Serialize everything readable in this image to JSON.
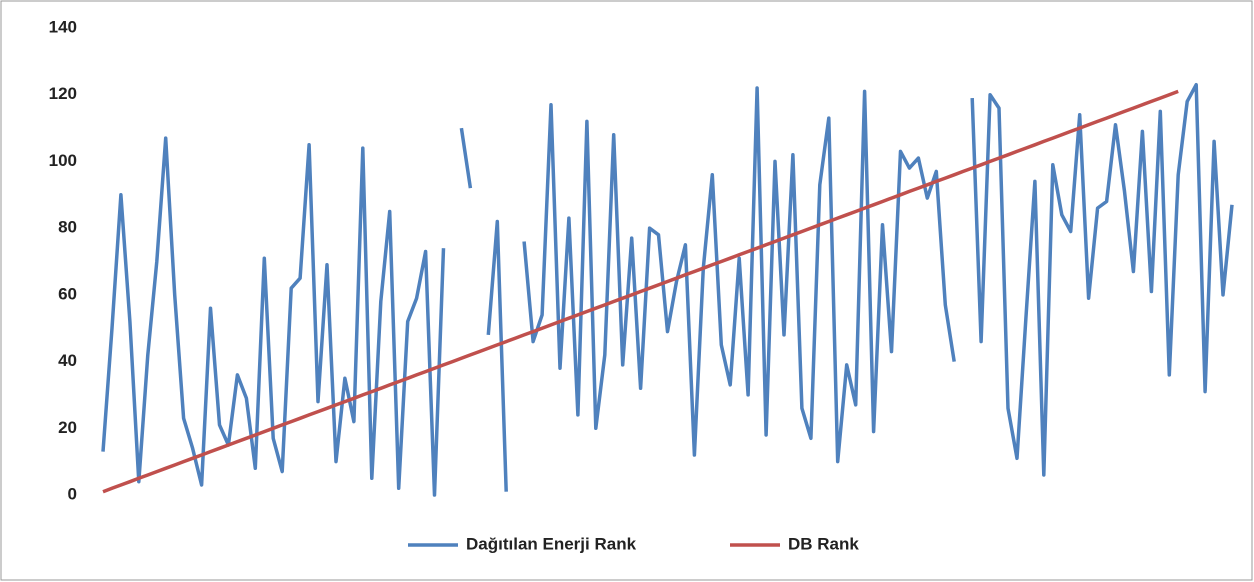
{
  "chart_data": {
    "type": "line",
    "categories": [
      null,
      null,
      null,
      null,
      null,
      null,
      null,
      null,
      null,
      null,
      null,
      null,
      null,
      null,
      null,
      null,
      null,
      null,
      null,
      null,
      null,
      null,
      null,
      null,
      null,
      null,
      null,
      null,
      null,
      null,
      null,
      null,
      null,
      null,
      null,
      null,
      null,
      null,
      null,
      null,
      null,
      null,
      null,
      null,
      null,
      null,
      null,
      null,
      null,
      null,
      null,
      null,
      null,
      null,
      null,
      null,
      null,
      null,
      null,
      null,
      null,
      null,
      null,
      null,
      null,
      null,
      null,
      null,
      null,
      null,
      null,
      null,
      null,
      null,
      null,
      null,
      null,
      null,
      null,
      null,
      null,
      null,
      null,
      null,
      null,
      null,
      null,
      null,
      null,
      null,
      null,
      null,
      null,
      null,
      null,
      null,
      null,
      null,
      null,
      null,
      null,
      null,
      null,
      null,
      null,
      null,
      null,
      null,
      null,
      null,
      null,
      null,
      null,
      null,
      null,
      null,
      null,
      null,
      null,
      null,
      null,
      null,
      null,
      null,
      null,
      null,
      null
    ],
    "series": [
      {
        "name": "Dağıtılan Enerji Rank",
        "color": "#4f81bd",
        "values": [
          13,
          50,
          90,
          52,
          4,
          42,
          70,
          107,
          60,
          23,
          14,
          3,
          56,
          21,
          15,
          36,
          29,
          8,
          71,
          17,
          7,
          62,
          65,
          105,
          28,
          69,
          10,
          35,
          22,
          104,
          5,
          58,
          85,
          2,
          52,
          59,
          73,
          0,
          74,
          null,
          110,
          92,
          null,
          48,
          82,
          1,
          null,
          76,
          46,
          54,
          117,
          38,
          83,
          24,
          112,
          20,
          42,
          108,
          39,
          77,
          32,
          80,
          78,
          49,
          64,
          75,
          12,
          68,
          96,
          45,
          33,
          71,
          30,
          122,
          18,
          100,
          48,
          102,
          26,
          17,
          93,
          113,
          10,
          39,
          27,
          121,
          19,
          81,
          43,
          103,
          98,
          101,
          89,
          97,
          57,
          40,
          null,
          119,
          46,
          120,
          116,
          26,
          11,
          53,
          94,
          6,
          99,
          84,
          79,
          114,
          59,
          86,
          88,
          111,
          91,
          67,
          109,
          61,
          115,
          36,
          96,
          118,
          123,
          31,
          106,
          60,
          87
        ]
      },
      {
        "name": "DB Rank",
        "color": "#c0504d",
        "values": [
          1,
          2,
          3,
          4,
          5,
          6,
          7,
          8,
          9,
          10,
          11,
          12,
          13,
          14,
          15,
          16,
          17,
          18,
          19,
          20,
          21,
          22,
          23,
          24,
          25,
          26,
          27,
          28,
          29,
          30,
          31,
          32,
          33,
          34,
          35,
          36,
          37,
          38,
          39,
          40,
          41,
          42,
          43,
          44,
          45,
          46,
          47,
          48,
          49,
          50,
          51,
          52,
          53,
          54,
          55,
          56,
          57,
          58,
          59,
          60,
          61,
          62,
          63,
          64,
          65,
          66,
          67,
          68,
          69,
          70,
          71,
          72,
          73,
          74,
          75,
          76,
          77,
          78,
          79,
          80,
          81,
          82,
          83,
          84,
          85,
          86,
          87,
          88,
          89,
          90,
          91,
          92,
          93,
          94,
          95,
          96,
          97,
          98,
          99,
          100,
          101,
          102,
          103,
          104,
          105,
          106,
          107,
          108,
          109,
          110,
          111,
          112,
          113,
          114,
          115,
          116,
          117,
          118,
          119,
          120,
          121,
          null,
          null,
          null,
          null,
          null,
          null
        ]
      }
    ],
    "ylim": [
      0,
      140
    ],
    "yticks": [
      0,
      20,
      40,
      60,
      80,
      100,
      120,
      140
    ],
    "legend": "bottom"
  }
}
